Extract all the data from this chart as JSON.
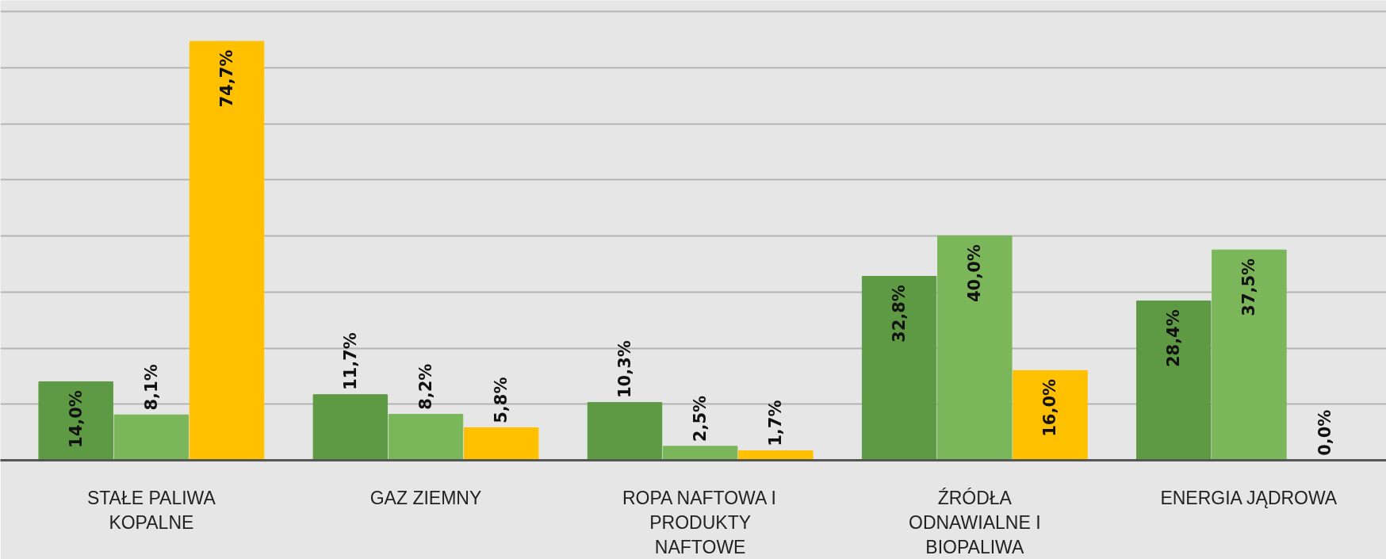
{
  "chart_data": {
    "type": "bar",
    "categories": [
      "STAŁE PALIWA KOPALNE",
      "GAZ ZIEMNY",
      "ROPA NAFTOWA I PRODUKTY NAFTOWE",
      "ŹRÓDŁA ODNAWIALNE I BIOPALIWA",
      "ENERGIA JĄDROWA"
    ],
    "series": [
      {
        "color": "#5e9a44",
        "values": [
          14.0,
          11.7,
          10.3,
          32.8,
          28.4
        ],
        "value_labels": [
          "14,0%",
          "11,7%",
          "10,3%",
          "32,8%",
          "28,4%"
        ]
      },
      {
        "color": "#7cb65b",
        "values": [
          8.1,
          8.2,
          2.5,
          40.0,
          37.5
        ],
        "value_labels": [
          "8,1%",
          "8,2%",
          "2,5%",
          "40,0%",
          "37,5%"
        ]
      },
      {
        "color": "#ffc000",
        "values": [
          74.7,
          5.8,
          1.7,
          16.0,
          0.0
        ],
        "value_labels": [
          "74,7%",
          "5,8%",
          "1,7%",
          "16,0%",
          "0,0%"
        ]
      }
    ],
    "ylim": [
      0,
      82
    ],
    "yticks": [
      {
        "value": 10,
        "label": null
      },
      {
        "value": 20,
        "label": null
      },
      {
        "value": 30,
        "label": null
      },
      {
        "value": 40,
        "label": null
      },
      {
        "value": 50,
        "label": null
      },
      {
        "value": 60,
        "label": null
      },
      {
        "value": 70,
        "label": null
      },
      {
        "value": 80,
        "label": null
      }
    ],
    "grid": "y",
    "tick_labels": "x"
  }
}
